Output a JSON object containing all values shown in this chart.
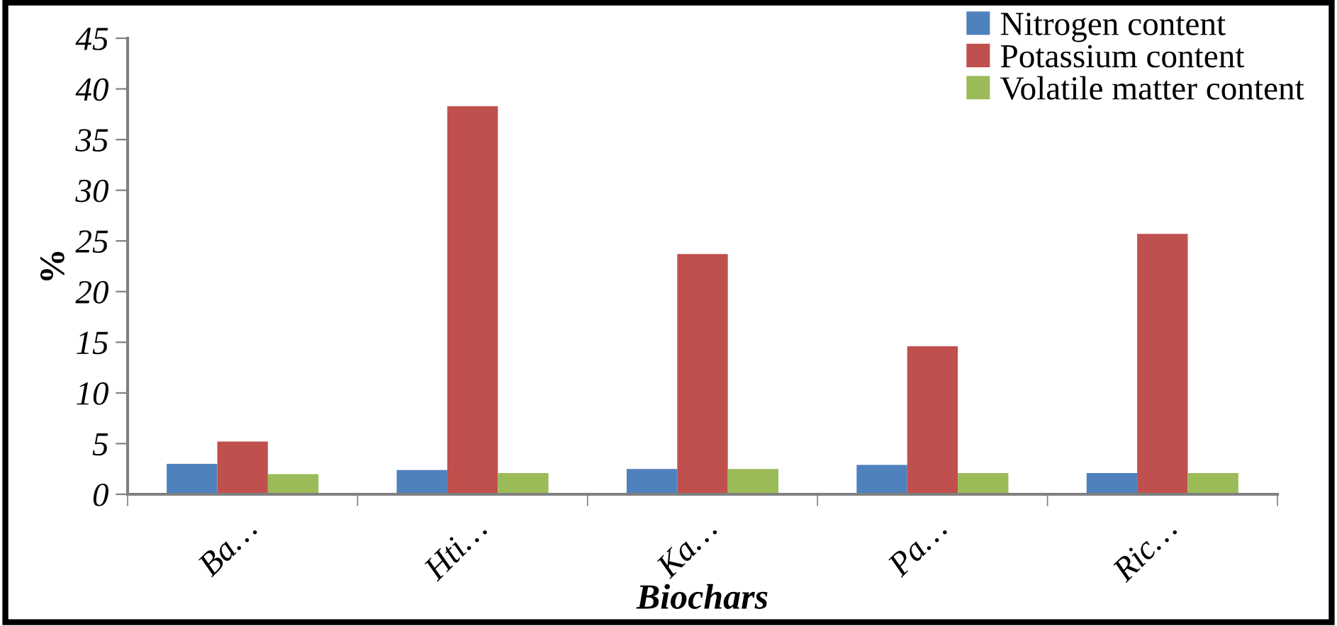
{
  "chart_data": {
    "type": "bar",
    "xlabel": "Biochars",
    "ylabel": "%",
    "categories": [
      "Ba…",
      "Hti…",
      "Ka…",
      "Pa…",
      "Ric…"
    ],
    "series": [
      {
        "name": "Nitrogen content",
        "color": "#4f81bd",
        "values": [
          3.0,
          2.4,
          2.5,
          2.9,
          2.1
        ]
      },
      {
        "name": "Potassium content",
        "color": "#c0504d",
        "values": [
          5.2,
          38.3,
          23.7,
          14.6,
          25.7
        ]
      },
      {
        "name": "Volatile matter content",
        "color": "#9bbb59",
        "values": [
          2.0,
          2.1,
          2.5,
          2.1,
          2.1
        ]
      }
    ],
    "ylim": [
      0,
      45
    ],
    "yticks": [
      0,
      5,
      10,
      15,
      20,
      25,
      30,
      35,
      40,
      45
    ],
    "grid": false,
    "legend": "top right"
  }
}
